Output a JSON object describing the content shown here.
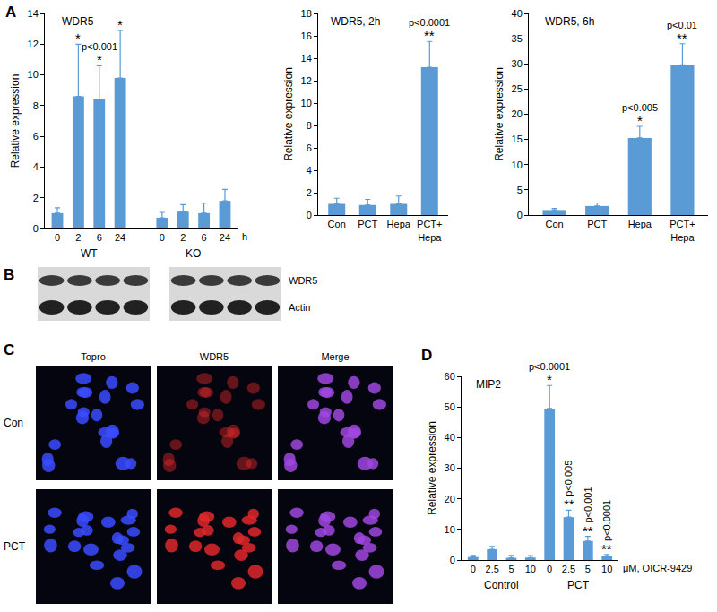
{
  "chart_data": [
    {
      "panel": "A",
      "type": "bar",
      "title": "WDR5",
      "y_label": "Relative expression",
      "x_label": "h",
      "categories": [
        "0",
        "2",
        "6",
        "24",
        null,
        "0",
        "2",
        "6",
        "24"
      ],
      "values": [
        1,
        8.6,
        8.4,
        9.8,
        null,
        0.7,
        1.1,
        1.0,
        1.8
      ],
      "errors": [
        0.35,
        3.4,
        2.2,
        3.1,
        null,
        0.35,
        0.45,
        0.65,
        0.75
      ],
      "groups": [
        {
          "label": "WT",
          "span": [
            0,
            3
          ]
        },
        {
          "label": "KO",
          "span": [
            5,
            8
          ]
        }
      ],
      "annotations": [
        {
          "index": 1,
          "texts": [
            "*"
          ]
        },
        {
          "index": 2,
          "texts": [
            "*",
            "p<0.001"
          ]
        },
        {
          "index": 3,
          "texts": [
            "*"
          ]
        }
      ],
      "ylim": [
        0,
        14
      ],
      "yticks": [
        0,
        2,
        4,
        6,
        8,
        10,
        12,
        14
      ],
      "color": "#5b9bd5",
      "grid": false
    },
    {
      "type": "bar",
      "title": "WDR5, 2h",
      "y_label": "Relative expression",
      "categories": [
        "Con",
        "PCT",
        "Hepa",
        "PCT+\nHepa"
      ],
      "values": [
        1,
        0.9,
        1.0,
        13.2
      ],
      "errors": [
        0.5,
        0.5,
        0.7,
        2.3
      ],
      "annotations": [
        {
          "index": 3,
          "texts": [
            "**",
            "p<0.0001"
          ]
        }
      ],
      "ylim": [
        0,
        18
      ],
      "yticks": [
        0,
        2,
        4,
        6,
        8,
        10,
        12,
        14,
        16,
        18
      ],
      "color": "#5b9bd5",
      "grid": false
    },
    {
      "type": "bar",
      "title": "WDR5, 6h",
      "y_label": "Relative expression",
      "categories": [
        "Con",
        "PCT",
        "Hepa",
        "PCT+\nHepa"
      ],
      "values": [
        1,
        1.8,
        15.3,
        29.8
      ],
      "errors": [
        0.3,
        0.6,
        2.3,
        4.2
      ],
      "annotations": [
        {
          "index": 2,
          "texts": [
            "*",
            "p<0.005"
          ]
        },
        {
          "index": 3,
          "texts": [
            "**",
            "p<0.01"
          ]
        }
      ],
      "ylim": [
        0,
        40
      ],
      "yticks": [
        0,
        5,
        10,
        15,
        20,
        25,
        30,
        35,
        40
      ],
      "color": "#5b9bd5",
      "grid": false
    },
    {
      "panel": "D",
      "type": "bar",
      "title": "MIP2",
      "y_label": "Relative expression",
      "x_label": "μM, OICR-9429",
      "categories": [
        "0",
        "2.5",
        "5",
        "10",
        "0",
        "2.5",
        "5",
        "10"
      ],
      "values": [
        1,
        3.5,
        0.7,
        0.8,
        49.5,
        14,
        6.2,
        1.3
      ],
      "errors": [
        0.5,
        0.9,
        0.8,
        0.6,
        7.5,
        2.3,
        1.5,
        0.5
      ],
      "groups": [
        {
          "label": "Control",
          "span": [
            0,
            3
          ]
        },
        {
          "label": "PCT",
          "span": [
            4,
            7
          ]
        }
      ],
      "annotations": [
        {
          "index": 4,
          "texts": [
            "*",
            "p<0.0001"
          ]
        },
        {
          "index": 5,
          "texts": [
            "**",
            "p<0.005"
          ]
        },
        {
          "index": 6,
          "texts": [
            "**",
            "p<0.001"
          ]
        },
        {
          "index": 7,
          "texts": [
            "**",
            "p<0.0001"
          ]
        }
      ],
      "ylim": [
        0,
        60
      ],
      "yticks": [
        0,
        10,
        20,
        30,
        40,
        50,
        60
      ],
      "color": "#5b9bd5",
      "grid": false
    }
  ],
  "blot": {
    "label": "B",
    "bands": [
      "WDR5",
      "Actin"
    ],
    "panels": 2,
    "lanes": 4
  },
  "microscopy": {
    "label": "C",
    "rows": [
      "Con",
      "PCT"
    ],
    "columns": [
      {
        "label": "Topro",
        "color": "#3b4cff"
      },
      {
        "label": "WDR5",
        "color": "#e0282a"
      },
      {
        "label": "Merge",
        "color": "#a048e0"
      }
    ]
  }
}
